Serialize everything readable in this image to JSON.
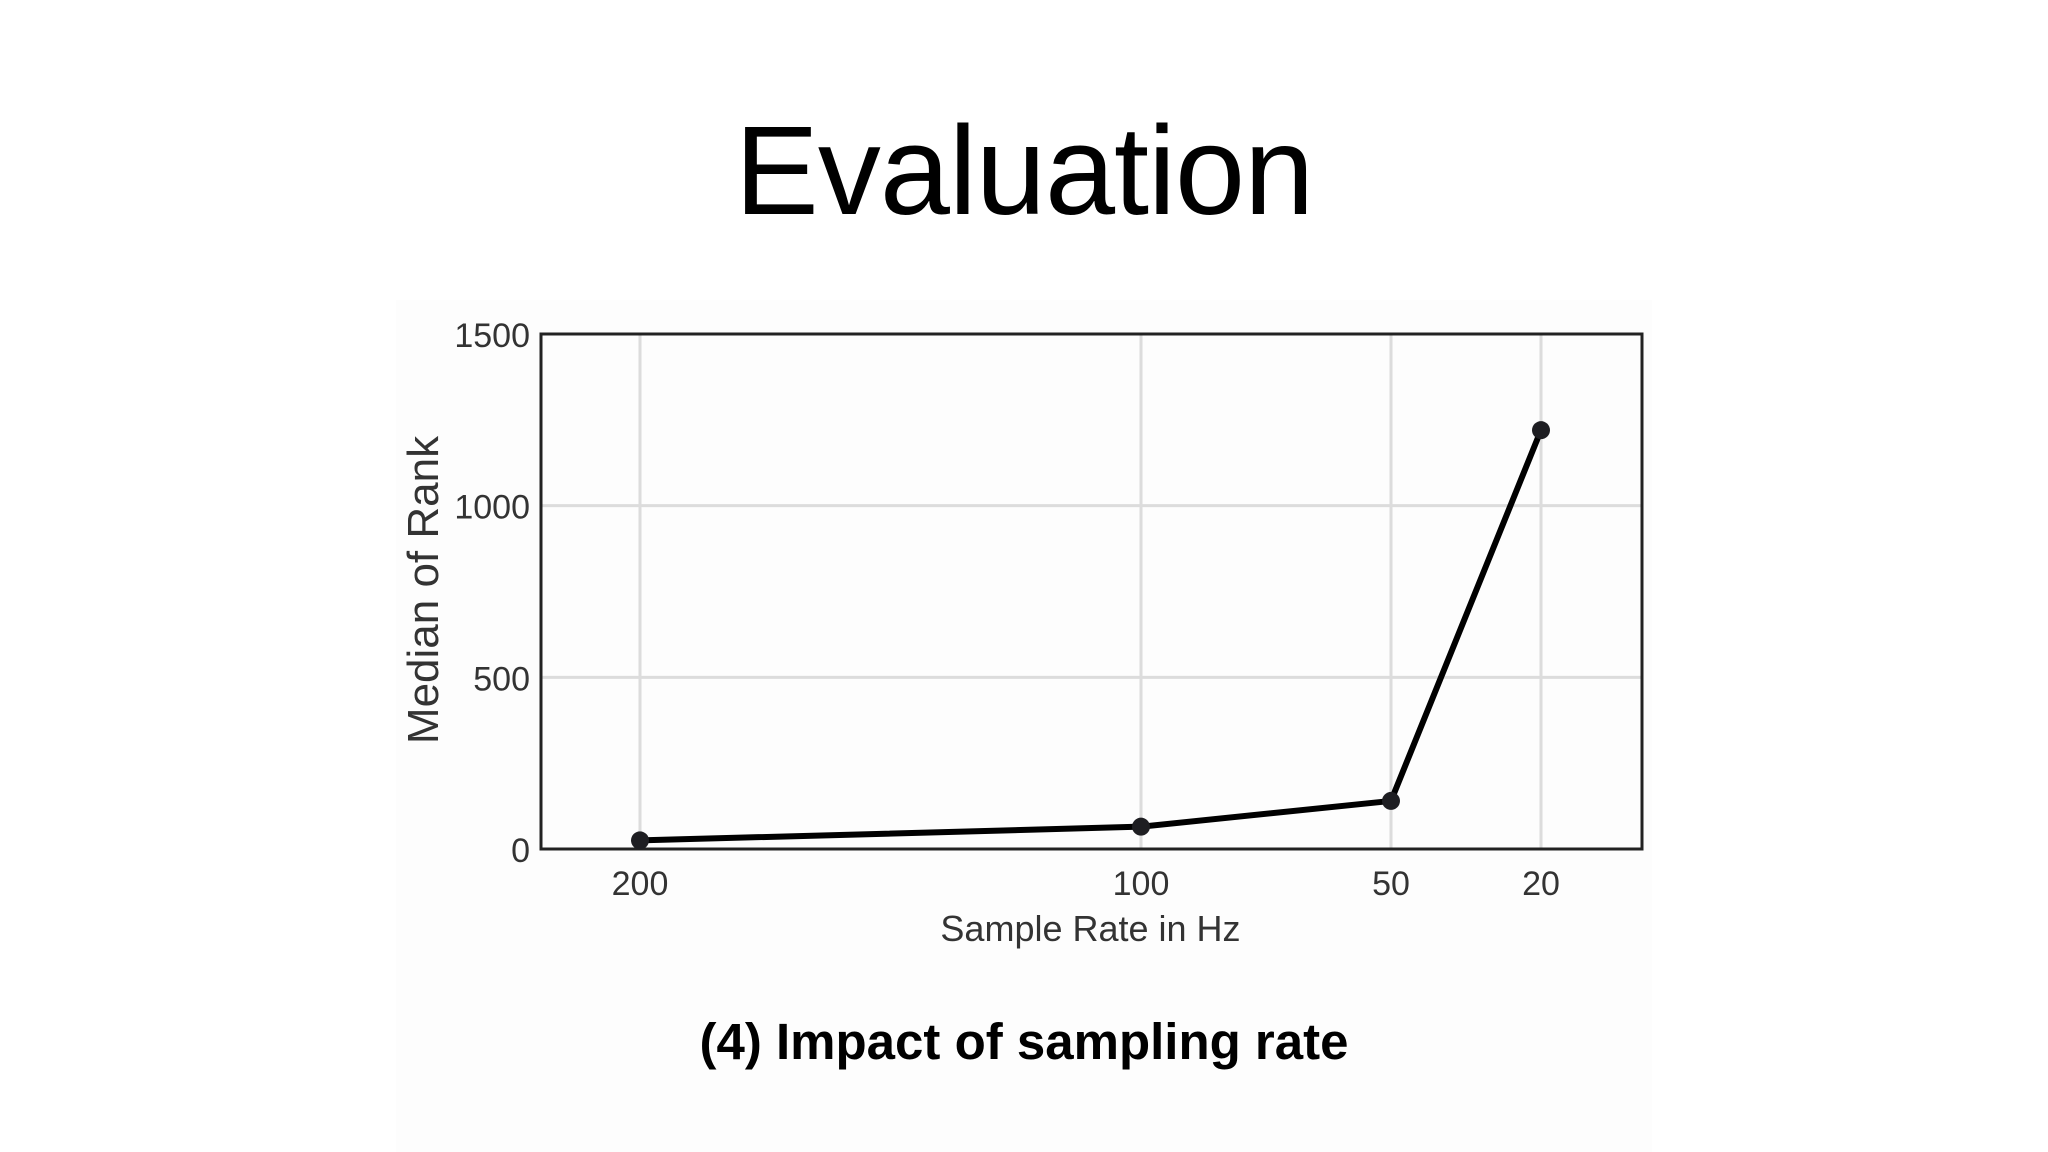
{
  "slide": {
    "title": "Evaluation",
    "caption": "(4) Impact of sampling rate"
  },
  "chart_data": {
    "type": "line",
    "categories": [
      "200",
      "100",
      "50",
      "20"
    ],
    "series": [
      {
        "values": [
          25,
          65,
          140,
          1220
        ]
      }
    ],
    "xlabel": "Sample Rate in Hz",
    "ylabel": "Median of Rank",
    "ylim": [
      0,
      1500
    ],
    "yticks": [
      0,
      500,
      1000,
      1500
    ],
    "grid": true,
    "legend": "none",
    "colors": {
      "line": "#000000",
      "marker": "#1e1e22",
      "grid": "#dcdcdc",
      "frame": "#222222",
      "tick_text": "#333333"
    }
  }
}
